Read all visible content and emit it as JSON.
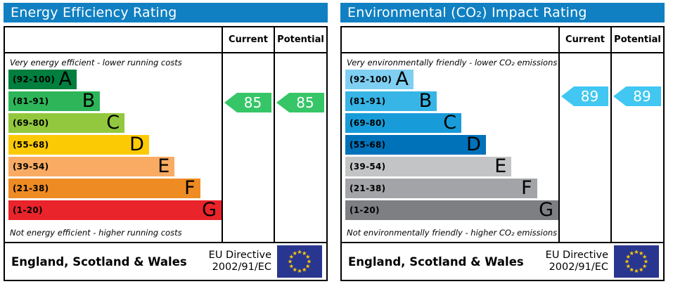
{
  "colors": {
    "header_bar": "#1080c2",
    "flag_blue": "#29368f",
    "flag_star": "#ffcc00"
  },
  "panels": [
    {
      "title": "Energy Efficiency Rating",
      "header": {
        "current": "Current",
        "potential": "Potential"
      },
      "top_note": "Very energy efficient - lower running costs",
      "bottom_note": "Not energy efficient - higher running costs",
      "bands": [
        {
          "letter": "A",
          "range": "(92-100)",
          "color": "#007f3e"
        },
        {
          "letter": "B",
          "range": "(81-91)",
          "color": "#2eb559"
        },
        {
          "letter": "C",
          "range": "(69-80)",
          "color": "#92c83e"
        },
        {
          "letter": "D",
          "range": "(55-68)",
          "color": "#fcca05"
        },
        {
          "letter": "E",
          "range": "(39-54)",
          "color": "#f9ab63"
        },
        {
          "letter": "F",
          "range": "(21-38)",
          "color": "#ee8b22"
        },
        {
          "letter": "G",
          "range": "(1-20)",
          "color": "#e9242a"
        }
      ],
      "current": {
        "value": 85,
        "color": "#36c567"
      },
      "potential": {
        "value": 85,
        "color": "#36c567"
      },
      "footer": {
        "region": "England, Scotland & Wales",
        "directive_line1": "EU Directive",
        "directive_line2": "2002/91/EC"
      }
    },
    {
      "title": "Environmental (CO₂) Impact Rating",
      "header": {
        "current": "Current",
        "potential": "Potential"
      },
      "top_note": "Very environmentally friendly - lower CO₂ emissions",
      "bottom_note": "Not environmentally friendly - higher CO₂ emissions",
      "bands": [
        {
          "letter": "A",
          "range": "(92-100)",
          "color": "#7ecff2"
        },
        {
          "letter": "B",
          "range": "(81-91)",
          "color": "#36b5e6"
        },
        {
          "letter": "C",
          "range": "(69-80)",
          "color": "#189cd9"
        },
        {
          "letter": "D",
          "range": "(55-68)",
          "color": "#0072ba"
        },
        {
          "letter": "E",
          "range": "(39-54)",
          "color": "#c3c4c6"
        },
        {
          "letter": "F",
          "range": "(21-38)",
          "color": "#a2a4a7"
        },
        {
          "letter": "G",
          "range": "(1-20)",
          "color": "#7d7f82"
        }
      ],
      "current": {
        "value": 89,
        "color": "#41c7f1"
      },
      "potential": {
        "value": 89,
        "color": "#41c7f1"
      },
      "footer": {
        "region": "England, Scotland & Wales",
        "directive_line1": "EU Directive",
        "directive_line2": "2002/91/EC"
      }
    }
  ],
  "chart_data": [
    {
      "type": "bar",
      "title": "Energy Efficiency Rating",
      "categories": [
        "A (92-100)",
        "B (81-91)",
        "C (69-80)",
        "D (55-68)",
        "E (39-54)",
        "F (21-38)",
        "G (1-20)"
      ],
      "series": [
        {
          "name": "Current",
          "values": [
            85
          ]
        },
        {
          "name": "Potential",
          "values": [
            85
          ]
        }
      ],
      "current_band": "B",
      "potential_band": "B",
      "xlabel": "",
      "ylabel": "",
      "ylim": [
        1,
        100
      ],
      "annotations": [
        "Very energy efficient - lower running costs",
        "Not energy efficient - higher running costs",
        "England, Scotland & Wales",
        "EU Directive 2002/91/EC"
      ]
    },
    {
      "type": "bar",
      "title": "Environmental (CO₂) Impact Rating",
      "categories": [
        "A (92-100)",
        "B (81-91)",
        "C (69-80)",
        "D (55-68)",
        "E (39-54)",
        "F (21-38)",
        "G (1-20)"
      ],
      "series": [
        {
          "name": "Current",
          "values": [
            89
          ]
        },
        {
          "name": "Potential",
          "values": [
            89
          ]
        }
      ],
      "current_band": "B",
      "potential_band": "B",
      "xlabel": "",
      "ylabel": "",
      "ylim": [
        1,
        100
      ],
      "annotations": [
        "Very environmentally friendly - lower CO₂ emissions",
        "Not environmentally friendly - higher CO₂ emissions",
        "England, Scotland & Wales",
        "EU Directive 2002/91/EC"
      ]
    }
  ]
}
